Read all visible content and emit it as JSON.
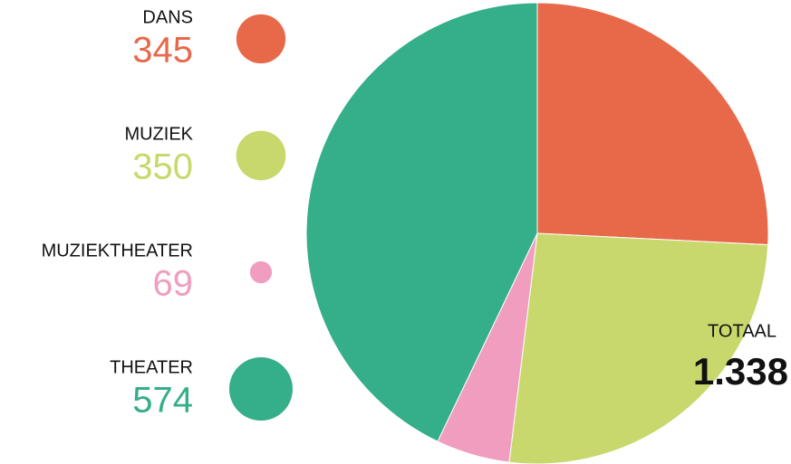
{
  "chart_data": {
    "type": "pie",
    "categories": [
      "DANS",
      "MUZIEK",
      "MUZIEKTHEATER",
      "THEATER"
    ],
    "values": [
      345,
      350,
      69,
      574
    ],
    "colors": [
      "#e8684a",
      "#c9d86c",
      "#f09dc0",
      "#35ae8a"
    ],
    "total_label": "TOTAAL",
    "total": 1338,
    "total_value_label": "1.338"
  }
}
